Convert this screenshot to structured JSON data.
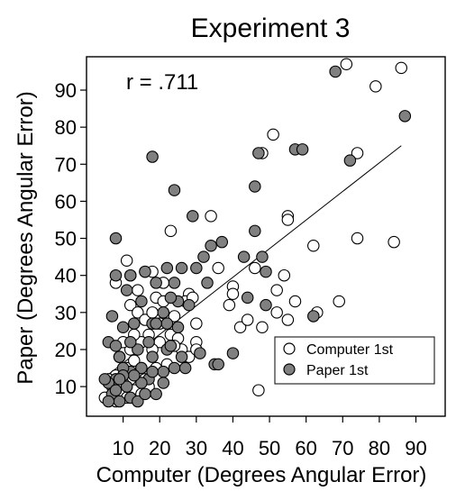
{
  "chart_data": {
    "type": "scatter",
    "title": "Experiment 3",
    "xlabel": "Computer (Degrees Angular Error)",
    "ylabel": "Paper (Degrees Angular Error)",
    "xlim": [
      0,
      98
    ],
    "ylim": [
      2,
      99
    ],
    "xticks": [
      10,
      20,
      30,
      40,
      50,
      60,
      70,
      80,
      90
    ],
    "yticks": [
      10,
      20,
      30,
      40,
      50,
      60,
      70,
      80,
      90
    ],
    "annotation": "r = .711",
    "grid": false,
    "legend_position": "bottom-right",
    "regression_line": {
      "x": [
        5,
        86
      ],
      "y": [
        12.5,
        75
      ]
    },
    "series": [
      {
        "name": "Computer 1st",
        "marker": "open-circle",
        "color": "#ffffff",
        "edge_color": "#000000",
        "points": [
          [
            71,
            97
          ],
          [
            86,
            96
          ],
          [
            79,
            91
          ],
          [
            51,
            78
          ],
          [
            74,
            73
          ],
          [
            48,
            73
          ],
          [
            55,
            56
          ],
          [
            55,
            55
          ],
          [
            34,
            56
          ],
          [
            23,
            52
          ],
          [
            74,
            50
          ],
          [
            84,
            49
          ],
          [
            62,
            48
          ],
          [
            54,
            40
          ],
          [
            36,
            42
          ],
          [
            46,
            42
          ],
          [
            40,
            37
          ],
          [
            40,
            35
          ],
          [
            39,
            32
          ],
          [
            52,
            36
          ],
          [
            57,
            33
          ],
          [
            69,
            33
          ],
          [
            63,
            30
          ],
          [
            52,
            30
          ],
          [
            55,
            28
          ],
          [
            48,
            26
          ],
          [
            42,
            26
          ],
          [
            44,
            28
          ],
          [
            47,
            9
          ],
          [
            11,
            44
          ],
          [
            12,
            40
          ],
          [
            16,
            41
          ],
          [
            18,
            41
          ],
          [
            14,
            36
          ],
          [
            8,
            38
          ],
          [
            12,
            32
          ],
          [
            14,
            30
          ],
          [
            16,
            28
          ],
          [
            18,
            30
          ],
          [
            19,
            34
          ],
          [
            21,
            33
          ],
          [
            24,
            29
          ],
          [
            23,
            24
          ],
          [
            20,
            22
          ],
          [
            18,
            20
          ],
          [
            17,
            24
          ],
          [
            15,
            22
          ],
          [
            13,
            24
          ],
          [
            12,
            20
          ],
          [
            10,
            22
          ],
          [
            9,
            18
          ],
          [
            11,
            15
          ],
          [
            13,
            17
          ],
          [
            15,
            15
          ],
          [
            16,
            12
          ],
          [
            14,
            11
          ],
          [
            12,
            12
          ],
          [
            10,
            11
          ],
          [
            8,
            13
          ],
          [
            7,
            10
          ],
          [
            9,
            8
          ],
          [
            11,
            7
          ],
          [
            13,
            9
          ],
          [
            15,
            8
          ],
          [
            17,
            10
          ],
          [
            6,
            12
          ],
          [
            5,
            7
          ],
          [
            8,
            6
          ],
          [
            28,
            35
          ],
          [
            30,
            27
          ],
          [
            30,
            22
          ],
          [
            26,
            20
          ],
          [
            28,
            18
          ],
          [
            30,
            20
          ],
          [
            22,
            16
          ],
          [
            19,
            15
          ],
          [
            25,
            23
          ],
          [
            27,
            33
          ],
          [
            29,
            34
          ],
          [
            21,
            38
          ],
          [
            24,
            21
          ],
          [
            20,
            27
          ]
        ]
      },
      {
        "name": "Paper 1st",
        "marker": "filled-circle",
        "color": "#808080",
        "edge_color": "#000000",
        "points": [
          [
            68,
            95
          ],
          [
            87,
            83
          ],
          [
            47,
            73
          ],
          [
            57,
            74
          ],
          [
            59,
            74
          ],
          [
            72,
            71
          ],
          [
            18,
            72
          ],
          [
            24,
            63
          ],
          [
            46,
            64
          ],
          [
            8,
            50
          ],
          [
            37,
            49
          ],
          [
            34,
            48
          ],
          [
            29,
            56
          ],
          [
            46,
            52
          ],
          [
            43,
            45
          ],
          [
            48,
            45
          ],
          [
            32,
            45
          ],
          [
            26,
            42
          ],
          [
            8,
            40
          ],
          [
            12,
            40
          ],
          [
            16,
            41
          ],
          [
            22,
            42
          ],
          [
            30,
            42
          ],
          [
            49,
            41
          ],
          [
            11,
            36
          ],
          [
            19,
            38
          ],
          [
            24,
            38
          ],
          [
            33,
            38
          ],
          [
            35,
            16
          ],
          [
            40,
            19
          ],
          [
            44,
            34
          ],
          [
            49,
            32
          ],
          [
            62,
            29
          ],
          [
            28,
            32
          ],
          [
            25,
            33
          ],
          [
            21,
            30
          ],
          [
            18,
            27
          ],
          [
            15,
            33
          ],
          [
            13,
            27
          ],
          [
            10,
            26
          ],
          [
            7,
            29
          ],
          [
            22,
            27
          ],
          [
            23,
            34
          ],
          [
            19,
            27
          ],
          [
            17,
            22
          ],
          [
            14,
            20
          ],
          [
            12,
            22
          ],
          [
            9,
            18
          ],
          [
            6,
            22
          ],
          [
            8,
            21
          ],
          [
            18,
            18
          ],
          [
            21,
            14
          ],
          [
            24,
            15
          ],
          [
            26,
            18
          ],
          [
            31,
            19
          ],
          [
            36,
            16
          ],
          [
            27,
            15
          ],
          [
            15,
            15
          ],
          [
            12,
            14
          ],
          [
            10,
            15
          ],
          [
            8,
            12
          ],
          [
            6,
            11
          ],
          [
            5,
            12
          ],
          [
            7,
            8
          ],
          [
            9,
            6
          ],
          [
            11,
            10
          ],
          [
            12,
            7
          ],
          [
            14,
            6
          ],
          [
            16,
            8
          ],
          [
            17,
            12
          ],
          [
            19,
            8
          ],
          [
            21,
            11
          ],
          [
            18,
            14
          ],
          [
            15,
            11
          ],
          [
            13,
            13
          ],
          [
            10,
            13
          ],
          [
            8,
            9
          ],
          [
            6,
            6
          ],
          [
            9,
            12
          ],
          [
            22,
            20
          ],
          [
            23,
            21
          ],
          [
            25,
            26
          ]
        ]
      }
    ]
  }
}
